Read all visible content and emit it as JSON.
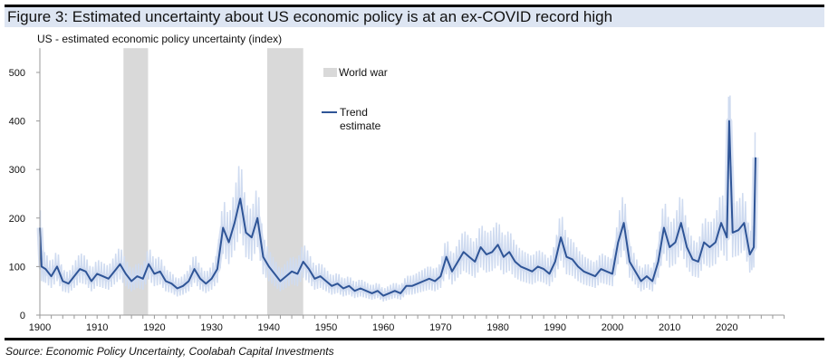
{
  "title": "Figure 3: Estimated uncertainty about US economic policy is at an ex-COVID record high",
  "source": "Source: Economic Policy Uncertainty,  Coolabah Capital Investments",
  "colors": {
    "trend": "#2f5597",
    "raw": "#cfdbf0",
    "war": "#d9d9d9"
  },
  "chart_data": {
    "type": "line",
    "title": "US - estimated economic policy uncertainty (index)",
    "xlabel": "",
    "ylabel": "",
    "xlim": [
      1900,
      2030
    ],
    "ylim": [
      0,
      550
    ],
    "yticks": [
      "0",
      "100",
      "200",
      "300",
      "400",
      "500"
    ],
    "xticks": [
      "1900",
      "1910",
      "1920",
      "1930",
      "1940",
      "1950",
      "1960",
      "1970",
      "1980",
      "1990",
      "2000",
      "2010",
      "2020"
    ],
    "grid": false,
    "legend_placement": "top-center",
    "shaded_periods": [
      {
        "name": "World war",
        "start": 1914.6,
        "end": 1918.9
      },
      {
        "name": "World war",
        "start": 1939.7,
        "end": 1946.0
      }
    ],
    "legend": [
      "World war",
      "Trend estimate"
    ],
    "series": [
      {
        "name": "Trend estimate",
        "x": [
          1900,
          1900.3,
          1901,
          1902,
          1903,
          1904,
          1905,
          1906,
          1907,
          1908,
          1909,
          1910,
          1911,
          1912,
          1913,
          1914,
          1915,
          1916,
          1917,
          1918,
          1919,
          1920,
          1921,
          1922,
          1923,
          1924,
          1925,
          1926,
          1927,
          1928,
          1929,
          1930,
          1931,
          1932,
          1933,
          1934,
          1935,
          1936,
          1937,
          1938,
          1939,
          1940,
          1941,
          1942,
          1943,
          1944,
          1945,
          1946,
          1947,
          1948,
          1949,
          1950,
          1951,
          1952,
          1953,
          1954,
          1955,
          1956,
          1957,
          1958,
          1959,
          1960,
          1961,
          1962,
          1963,
          1964,
          1965,
          1966,
          1967,
          1968,
          1969,
          1970,
          1971,
          1972,
          1973,
          1974,
          1975,
          1976,
          1977,
          1978,
          1979,
          1980,
          1981,
          1982,
          1983,
          1984,
          1985,
          1986,
          1987,
          1988,
          1989,
          1990,
          1991,
          1992,
          1993,
          1994,
          1995,
          1996,
          1997,
          1998,
          1999,
          2000,
          2001,
          2002,
          2003,
          2004,
          2005,
          2006,
          2007,
          2008,
          2009,
          2010,
          2011,
          2012,
          2013,
          2014,
          2015,
          2016,
          2017,
          2018,
          2019,
          2020,
          2020.4,
          2021,
          2022,
          2023,
          2024,
          2024.7,
          2025
        ],
        "values": [
          180,
          100,
          95,
          80,
          100,
          70,
          65,
          80,
          95,
          90,
          70,
          85,
          80,
          75,
          90,
          105,
          85,
          70,
          80,
          75,
          105,
          85,
          90,
          70,
          65,
          55,
          60,
          70,
          95,
          75,
          65,
          75,
          95,
          180,
          150,
          190,
          240,
          170,
          160,
          200,
          120,
          100,
          85,
          70,
          80,
          90,
          85,
          110,
          95,
          75,
          80,
          70,
          60,
          65,
          55,
          60,
          50,
          55,
          50,
          45,
          50,
          40,
          45,
          50,
          45,
          60,
          60,
          65,
          70,
          75,
          70,
          80,
          120,
          90,
          110,
          130,
          120,
          110,
          140,
          125,
          130,
          145,
          120,
          130,
          110,
          100,
          95,
          90,
          100,
          95,
          85,
          110,
          160,
          120,
          115,
          100,
          90,
          85,
          80,
          95,
          90,
          85,
          150,
          190,
          110,
          90,
          70,
          80,
          70,
          110,
          180,
          140,
          150,
          190,
          140,
          115,
          110,
          150,
          140,
          150,
          190,
          160,
          400,
          170,
          175,
          190,
          125,
          140,
          325
        ]
      }
    ]
  }
}
